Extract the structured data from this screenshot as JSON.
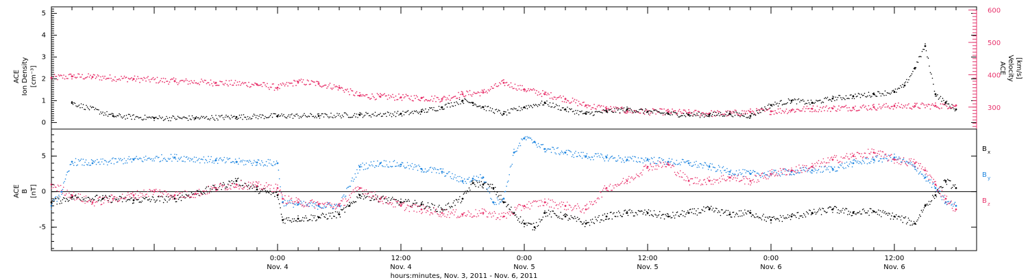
{
  "colors": {
    "black": "#000000",
    "blue": "#1f86e0",
    "magenta": "#e8336c",
    "frame": "#000000"
  },
  "chart_data": [
    {
      "type": "scatter",
      "panel": "top",
      "ylabel_left": {
        "line1": "ACE",
        "line2": "Ion Density",
        "line3": "[cm⁻³]"
      },
      "ylabel_right": {
        "line1": "ACE",
        "line2": "Velocity",
        "line3": "[km/s]"
      },
      "y_left_ticks": [
        "0",
        "1",
        "2",
        "3",
        "4",
        "5"
      ],
      "y_left_range": [
        -0.3,
        5.3
      ],
      "y_right_ticks": [
        "300",
        "400",
        "500",
        "600"
      ],
      "y_right_range": [
        232,
        610
      ],
      "x_range_hours": [
        -22,
        68
      ],
      "series": [
        {
          "axis": "left",
          "color": "black",
          "x": [
            -20,
            -16,
            -12,
            -8,
            -4,
            0,
            4,
            8,
            12,
            14,
            16,
            18,
            19,
            20,
            22,
            24,
            26,
            28,
            30,
            32,
            34,
            36,
            38,
            40,
            42,
            44,
            46,
            48,
            50,
            52,
            54,
            56,
            58,
            60,
            61,
            62,
            63,
            64,
            65,
            66
          ],
          "y": [
            0.9,
            0.3,
            0.2,
            0.2,
            0.25,
            0.3,
            0.3,
            0.35,
            0.4,
            0.5,
            0.7,
            1.0,
            0.9,
            0.7,
            0.4,
            0.7,
            0.9,
            0.6,
            0.4,
            0.5,
            0.6,
            0.5,
            0.4,
            0.35,
            0.35,
            0.4,
            0.3,
            0.8,
            1.0,
            0.9,
            1.1,
            1.2,
            1.3,
            1.4,
            1.7,
            2.5,
            3.5,
            1.3,
            0.9,
            0.6
          ]
        },
        {
          "axis": "right",
          "color": "magenta",
          "x": [
            -22,
            -20,
            -18,
            -14,
            -10,
            -6,
            -2,
            0,
            2,
            4,
            6,
            8,
            10,
            12,
            14,
            16,
            18,
            20,
            22,
            24,
            26,
            28,
            30,
            32,
            34,
            36,
            38,
            40,
            42,
            44,
            46,
            48,
            50,
            52,
            54,
            56,
            58,
            60,
            62,
            64,
            66
          ],
          "y": [
            390,
            395,
            393,
            387,
            380,
            375,
            370,
            360,
            378,
            372,
            360,
            335,
            332,
            330,
            328,
            325,
            340,
            345,
            375,
            355,
            340,
            325,
            305,
            295,
            288,
            285,
            285,
            282,
            280,
            280,
            285,
            287,
            290,
            295,
            296,
            298,
            300,
            303,
            303,
            304,
            305
          ]
        }
      ]
    },
    {
      "type": "scatter",
      "panel": "bottom",
      "ylabel": {
        "line1": "ACE",
        "line2": "B",
        "line3": "[nT]"
      },
      "y_ticks": [
        "-5",
        "0",
        "5"
      ],
      "y_range": [
        -8.3,
        8.8
      ],
      "x_range_hours": [
        -22,
        68
      ],
      "x_ticks": [
        {
          "hour": 0,
          "time": "0:00",
          "date": "Nov. 4"
        },
        {
          "hour": 12,
          "time": "12:00",
          "date": "Nov. 4"
        },
        {
          "hour": 24,
          "time": "0:00",
          "date": "Nov. 5"
        },
        {
          "hour": 36,
          "time": "12:00",
          "date": "Nov. 5"
        },
        {
          "hour": 48,
          "time": "0:00",
          "date": "Nov. 6"
        },
        {
          "hour": 60,
          "time": "12:00",
          "date": "Nov. 6"
        }
      ],
      "xlabel": "hours:minutes, Nov.  3, 2011 - Nov.  6, 2011",
      "legend": [
        {
          "label": "B",
          "sub": "x",
          "color": "black"
        },
        {
          "label": "B",
          "sub": "y",
          "color": "blue"
        },
        {
          "label": "B",
          "sub": "z",
          "color": "magenta"
        }
      ],
      "series": [
        {
          "name": "Bx",
          "color": "black",
          "x": [
            -22,
            -20,
            -17,
            -14,
            -10,
            -6,
            -4,
            -2,
            0,
            0.5,
            2,
            4,
            6,
            7,
            8,
            10,
            12,
            14,
            16,
            18,
            19,
            20,
            21,
            22,
            23,
            24,
            25,
            26,
            28,
            30,
            32,
            34,
            36,
            38,
            40,
            42,
            44,
            46,
            48,
            50,
            52,
            54,
            56,
            58,
            60,
            62,
            63,
            64,
            65,
            66
          ],
          "y": [
            -1.5,
            -0.8,
            -1.0,
            -1.2,
            -1.0,
            0.5,
            1.5,
            0.3,
            -0.5,
            -4.0,
            -3.8,
            -3.6,
            -3.2,
            -2.0,
            -0.5,
            -1.0,
            -1.5,
            -1.8,
            -2.5,
            -1.0,
            1.2,
            1.0,
            0.5,
            -1.5,
            -3.0,
            -4.5,
            -5.0,
            -3.0,
            -3.5,
            -4.5,
            -3.5,
            -3.0,
            -3.0,
            -3.5,
            -3.0,
            -2.5,
            -3.2,
            -3.0,
            -4.0,
            -3.5,
            -3.0,
            -2.5,
            -3.0,
            -2.8,
            -3.5,
            -4.5,
            -2.0,
            -0.5,
            1.5,
            0.5
          ]
        },
        {
          "name": "By",
          "color": "blue",
          "x": [
            -22,
            -21,
            -20,
            -18,
            -14,
            -10,
            -6,
            -4,
            -2,
            0,
            0.5,
            2,
            4,
            6,
            8,
            10,
            12,
            14,
            16,
            18,
            19,
            20,
            21,
            22,
            23,
            24,
            25,
            26,
            28,
            30,
            32,
            34,
            36,
            38,
            40,
            42,
            44,
            46,
            48,
            50,
            52,
            54,
            56,
            58,
            60,
            62,
            63,
            64,
            65,
            66
          ],
          "y": [
            -2.0,
            0.0,
            4.2,
            4.0,
            4.5,
            4.8,
            4.4,
            4.2,
            4.1,
            4.0,
            -1.5,
            -1.8,
            -2.0,
            -2.0,
            3.5,
            4.0,
            3.8,
            3.2,
            2.8,
            1.5,
            1.8,
            2.0,
            -1.5,
            -1.0,
            5.5,
            7.5,
            7.0,
            6.0,
            5.5,
            5.0,
            4.8,
            4.5,
            4.5,
            4.2,
            4.0,
            3.5,
            2.8,
            2.5,
            2.5,
            2.8,
            3.0,
            3.2,
            4.0,
            4.5,
            4.8,
            3.5,
            2.0,
            0.5,
            -1.5,
            -2.0
          ]
        },
        {
          "name": "Bz",
          "color": "magenta",
          "x": [
            -22,
            -20,
            -18,
            -16,
            -14,
            -12,
            -10,
            -8,
            -6,
            -4,
            -2,
            0,
            0.5,
            2,
            4,
            6,
            8,
            10,
            12,
            14,
            16,
            18,
            20,
            22,
            24,
            26,
            28,
            30,
            32,
            34,
            36,
            38,
            40,
            42,
            44,
            46,
            48,
            50,
            52,
            54,
            56,
            58,
            60,
            62,
            63,
            64,
            65,
            66
          ],
          "y": [
            1.0,
            -0.5,
            -1.5,
            -1.0,
            -0.5,
            0.0,
            -0.5,
            -0.3,
            0.5,
            1.0,
            0.8,
            0.5,
            -1.0,
            -1.5,
            -1.8,
            -2.0,
            0.5,
            -1.0,
            -2.0,
            -2.5,
            -3.0,
            -3.2,
            -3.0,
            -3.5,
            -2.0,
            -1.5,
            -2.0,
            -2.5,
            0.5,
            1.5,
            3.5,
            3.8,
            1.5,
            1.5,
            2.0,
            1.5,
            2.5,
            3.0,
            3.5,
            4.5,
            5.0,
            5.5,
            4.5,
            4.0,
            3.0,
            1.0,
            -1.0,
            -2.5
          ]
        }
      ]
    }
  ]
}
